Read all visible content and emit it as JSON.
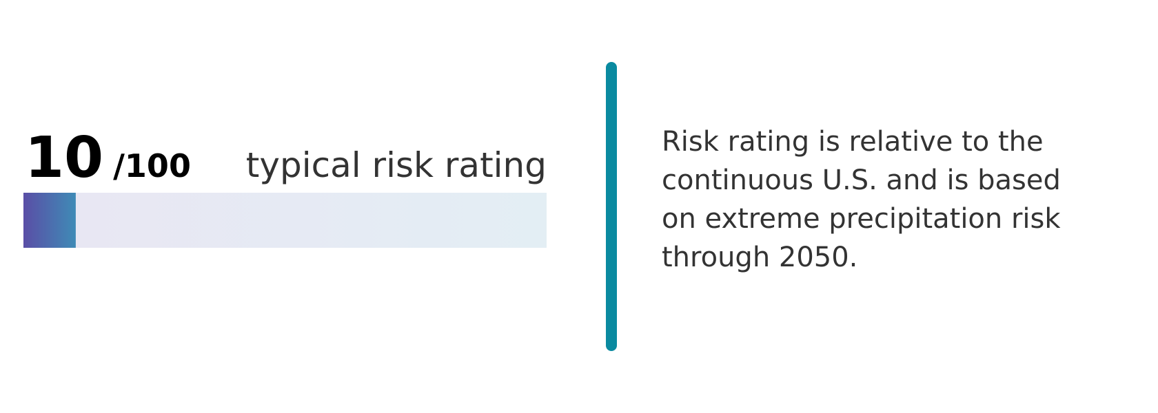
{
  "score": 10,
  "max": {
    "value": 100,
    "label": "/100"
  },
  "label": "typical risk rating",
  "description": [
    "Risk rating is relative to the",
    "continuous U.S. and is based",
    "on extreme precipitation risk",
    "through 2050."
  ]
}
